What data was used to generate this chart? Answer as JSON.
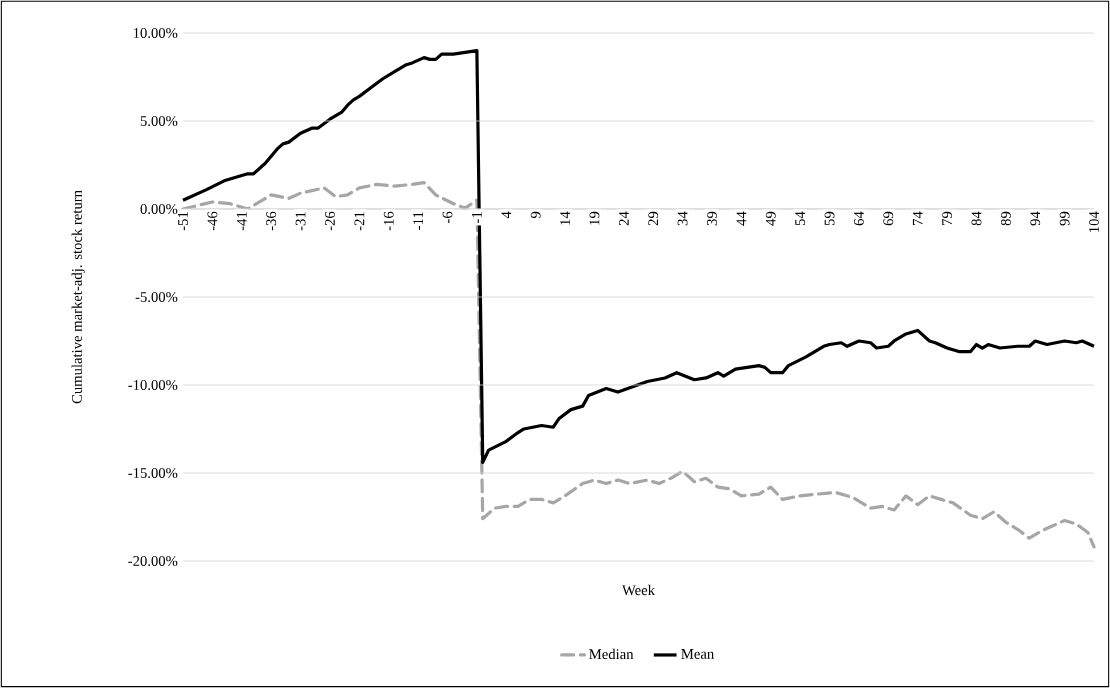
{
  "chart_data": {
    "type": "line",
    "xlabel": "Week",
    "ylabel": "Cumulative market-adj. stock return",
    "xlim": [
      -51,
      104
    ],
    "ylim": [
      -20,
      10
    ],
    "xticks": [
      -51,
      -46,
      -41,
      -36,
      -31,
      -26,
      -21,
      -16,
      -11,
      -6,
      -1,
      4,
      9,
      14,
      19,
      24,
      29,
      34,
      39,
      44,
      49,
      54,
      59,
      64,
      69,
      74,
      79,
      84,
      89,
      94,
      99,
      104
    ],
    "yticks": [
      {
        "value": -20,
        "label": "-20.00%"
      },
      {
        "value": -15,
        "label": "-15.00%"
      },
      {
        "value": -10,
        "label": "-10.00%"
      },
      {
        "value": -5,
        "label": "-5.00%"
      },
      {
        "value": 0,
        "label": "0.00%"
      },
      {
        "value": 5,
        "label": "5.00%"
      },
      {
        "value": 10,
        "label": "10.00%"
      }
    ],
    "grid": "y",
    "legend": "bottom",
    "series": [
      {
        "name": "Median",
        "color": "#a6a6a6",
        "line_style": "dashed",
        "x": [
          -51,
          -46,
          -43,
          -40,
          -36,
          -33,
          -31,
          -27,
          -25,
          -23,
          -21,
          -18,
          -15,
          -12,
          -10,
          -8,
          -5,
          -3,
          -1,
          0,
          2,
          4,
          6,
          8,
          10,
          12,
          14,
          17,
          19,
          21,
          23,
          25,
          28,
          30,
          32,
          34,
          36,
          38,
          40,
          42,
          44,
          47,
          49,
          51,
          54,
          57,
          60,
          63,
          66,
          68,
          70,
          72,
          74,
          76,
          78,
          80,
          83,
          85,
          87,
          89,
          91,
          93,
          95,
          97,
          99,
          101,
          103,
          104
        ],
        "values": [
          0.0,
          0.4,
          0.3,
          0.0,
          0.8,
          0.6,
          0.9,
          1.2,
          0.7,
          0.8,
          1.2,
          1.4,
          1.3,
          1.4,
          1.5,
          0.8,
          0.3,
          0.05,
          0.5,
          -17.6,
          -17.0,
          -16.9,
          -16.9,
          -16.5,
          -16.5,
          -16.7,
          -16.3,
          -15.6,
          -15.4,
          -15.6,
          -15.4,
          -15.6,
          -15.4,
          -15.6,
          -15.3,
          -14.9,
          -15.5,
          -15.3,
          -15.8,
          -15.9,
          -16.3,
          -16.2,
          -15.8,
          -16.5,
          -16.3,
          -16.2,
          -16.1,
          -16.4,
          -17.0,
          -16.9,
          -17.1,
          -16.3,
          -16.8,
          -16.3,
          -16.5,
          -16.7,
          -17.4,
          -17.6,
          -17.2,
          -17.8,
          -18.2,
          -18.7,
          -18.3,
          -18.0,
          -17.7,
          -17.9,
          -18.4,
          -19.2
        ]
      },
      {
        "name": "Mean",
        "color": "#000000",
        "line_style": "solid",
        "x": [
          -51,
          -47,
          -44,
          -42,
          -40,
          -39,
          -37,
          -35,
          -34,
          -33,
          -31,
          -29,
          -28,
          -26,
          -24,
          -23,
          -22,
          -21,
          -19,
          -17,
          -15,
          -13,
          -12,
          -10,
          -9,
          -8,
          -7,
          -5,
          -1,
          0,
          1,
          4,
          6,
          7,
          10,
          12,
          13,
          15,
          17,
          18,
          21,
          23,
          28,
          31,
          33,
          36,
          38,
          40,
          41,
          43,
          47,
          48,
          49,
          51,
          52,
          55,
          58,
          59,
          61,
          62,
          64,
          66,
          67,
          69,
          70,
          72,
          74,
          76,
          77,
          79,
          81,
          83,
          84,
          85,
          86,
          88,
          91,
          93,
          94,
          96,
          99,
          101,
          102,
          104
        ],
        "values": [
          0.5,
          1.1,
          1.6,
          1.8,
          2.0,
          2.0,
          2.6,
          3.4,
          3.7,
          3.8,
          4.3,
          4.6,
          4.6,
          5.1,
          5.5,
          5.9,
          6.2,
          6.4,
          6.9,
          7.4,
          7.8,
          8.2,
          8.3,
          8.6,
          8.5,
          8.5,
          8.8,
          8.8,
          9.0,
          -14.4,
          -13.7,
          -13.2,
          -12.7,
          -12.5,
          -12.3,
          -12.4,
          -11.9,
          -11.4,
          -11.2,
          -10.6,
          -10.2,
          -10.4,
          -9.8,
          -9.6,
          -9.3,
          -9.7,
          -9.6,
          -9.3,
          -9.5,
          -9.1,
          -8.9,
          -9.0,
          -9.3,
          -9.3,
          -8.9,
          -8.4,
          -7.8,
          -7.7,
          -7.6,
          -7.8,
          -7.5,
          -7.6,
          -7.9,
          -7.8,
          -7.5,
          -7.1,
          -6.9,
          -7.5,
          -7.6,
          -7.9,
          -8.1,
          -8.1,
          -7.7,
          -7.9,
          -7.7,
          -7.9,
          -7.8,
          -7.8,
          -7.5,
          -7.7,
          -7.5,
          -7.6,
          -7.5,
          -7.8
        ]
      }
    ]
  }
}
